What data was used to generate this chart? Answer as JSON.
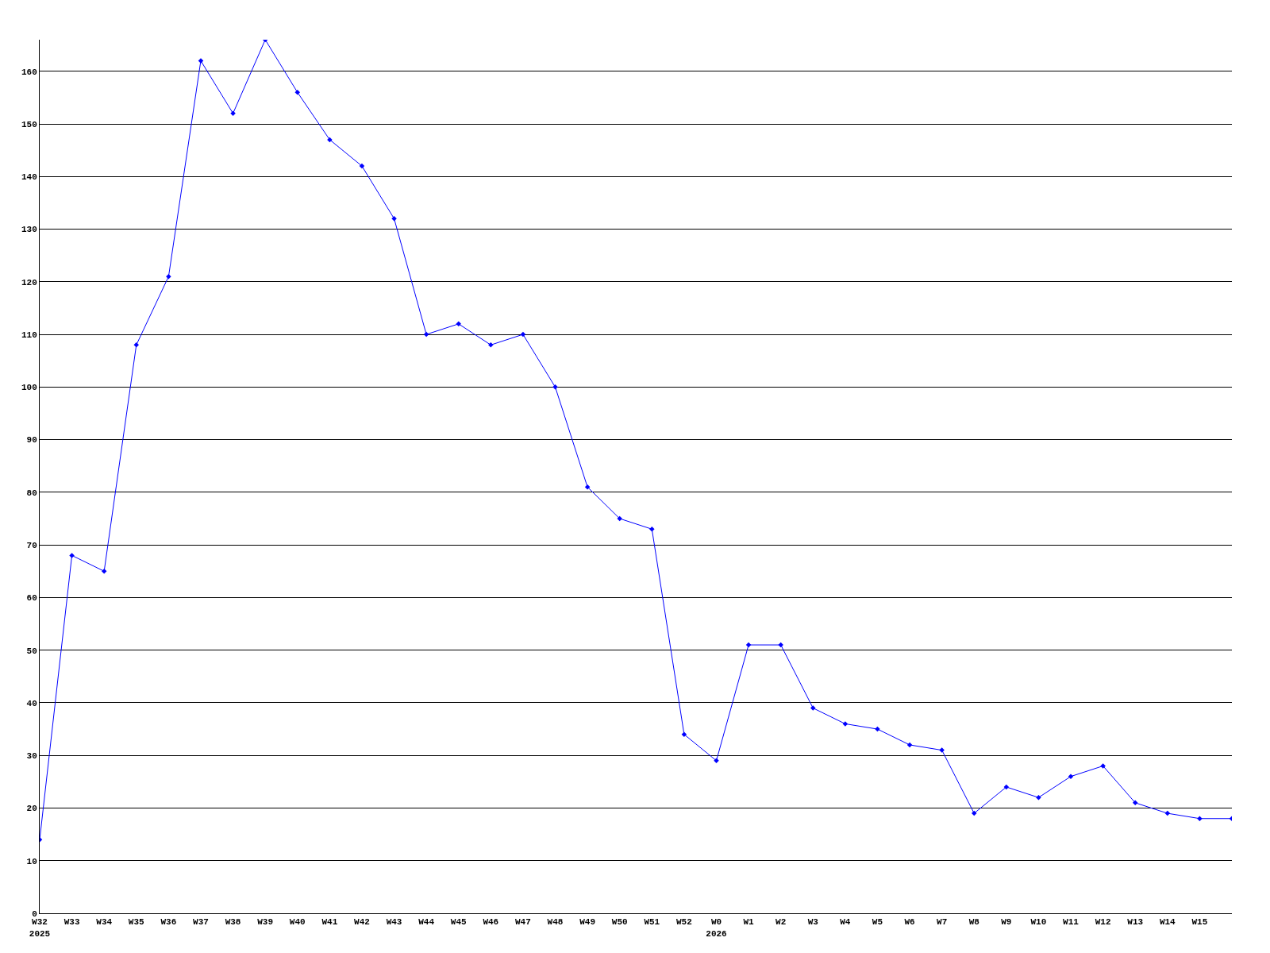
{
  "chart_data": {
    "type": "line",
    "categories": [
      "W32\n2025",
      "W33",
      "W34",
      "W35",
      "W36",
      "W37",
      "W38",
      "W39",
      "W40",
      "W41",
      "W42",
      "W43",
      "W44",
      "W45",
      "W46",
      "W47",
      "W48",
      "W49",
      "W50",
      "W51",
      "W52",
      "W0\n2026",
      "W1",
      "W2",
      "W3",
      "W4",
      "W5",
      "W6",
      "W7",
      "W8",
      "W9",
      "W10",
      "W11",
      "W12",
      "W13",
      "W14",
      "W15",
      null
    ],
    "series": [
      {
        "color": "#0000ff",
        "values": [
          14,
          68,
          65,
          108,
          121,
          162,
          152,
          166,
          156,
          147,
          142,
          132,
          110,
          112,
          108,
          110,
          100,
          81,
          75,
          73,
          34,
          29,
          51,
          51,
          39,
          36,
          35,
          32,
          31,
          19,
          24,
          22,
          26,
          28,
          21,
          19,
          18,
          18
        ]
      }
    ],
    "ylim": [
      0,
      166
    ],
    "yticks": [
      0,
      10,
      20,
      30,
      40,
      50,
      60,
      70,
      80,
      90,
      100,
      110,
      120,
      130,
      140,
      150,
      160
    ],
    "grid": "y",
    "marker": "diamond",
    "line_style": "solid"
  }
}
